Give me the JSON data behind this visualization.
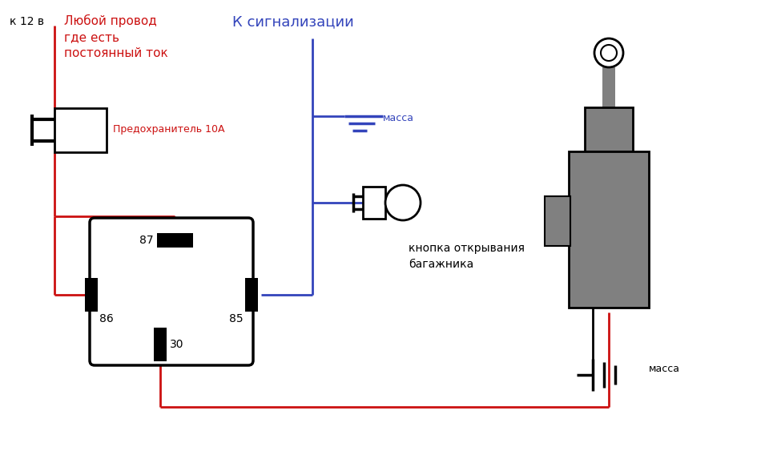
{
  "bg": "#ffffff",
  "red": "#cc1111",
  "blue": "#3344bb",
  "black": "#000000",
  "gray": "#808080",
  "label_12v": "к 12 в",
  "label_any": "Любой провод\nгде есть\nпостоянный ток",
  "label_fuse": "Предохранитель 10А",
  "label_alarm": "К сигнализации",
  "label_massa1": "масса",
  "label_button": "кнопка открывания\nбагажника",
  "label_massa2": "масса",
  "r87": "87",
  "r86": "86",
  "r85": "85",
  "r30": "30",
  "figsize": [
    9.6,
    5.68
  ],
  "dpi": 100
}
